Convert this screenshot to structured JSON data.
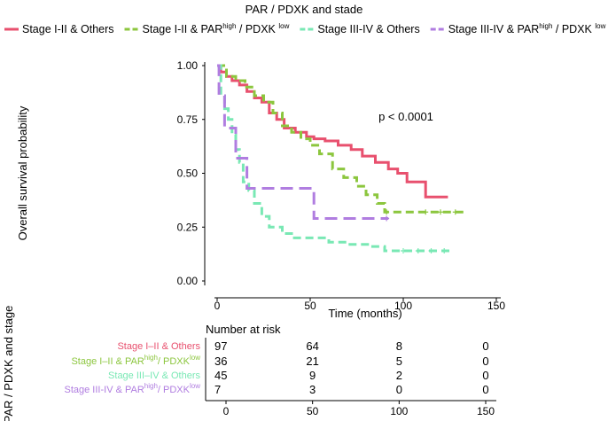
{
  "chart_data": {
    "type": "line",
    "subtype": "kaplan-meier",
    "title": "PAR / PDXK and stade",
    "xlabel": "Time (months)",
    "ylabel": "Overall survival probability",
    "xlim": [
      0,
      150
    ],
    "ylim": [
      0,
      1
    ],
    "x_ticks": [
      "0",
      "50",
      "100",
      "150"
    ],
    "y_ticks": [
      "0.00",
      "0.25",
      "0.50",
      "0.75",
      "1.00"
    ],
    "annotation": "p < 0.0001",
    "legend_position": "top",
    "series": [
      {
        "name": "Stage I-II & Others",
        "legend_parts": [
          "Stage I-II & Others"
        ],
        "color": "#e8506e",
        "dash": "solid",
        "x": [
          0,
          2,
          5,
          8,
          12,
          16,
          20,
          24,
          28,
          32,
          36,
          42,
          48,
          52,
          58,
          65,
          72,
          78,
          85,
          92,
          97,
          102,
          112,
          124
        ],
        "y": [
          1.0,
          0.97,
          0.95,
          0.93,
          0.91,
          0.88,
          0.85,
          0.83,
          0.78,
          0.75,
          0.71,
          0.69,
          0.67,
          0.66,
          0.65,
          0.63,
          0.61,
          0.58,
          0.55,
          0.52,
          0.5,
          0.46,
          0.39,
          0.39
        ],
        "censor_x": [],
        "risk_label_parts": [
          "Stage I–II & Others"
        ],
        "at_risk": [
          97,
          64,
          8,
          0
        ]
      },
      {
        "name": "Stage I-II & PAR high / PDXK low",
        "legend_parts": [
          "Stage I-II & PAR",
          "high",
          " / PDXK ",
          "low"
        ],
        "color": "#8cc63e",
        "dash": "dashed",
        "x": [
          0,
          5,
          10,
          15,
          20,
          25,
          30,
          35,
          40,
          45,
          50,
          55,
          62,
          68,
          75,
          80,
          86,
          90,
          134
        ],
        "y": [
          1.0,
          0.95,
          0.93,
          0.9,
          0.86,
          0.83,
          0.78,
          0.72,
          0.69,
          0.66,
          0.63,
          0.59,
          0.52,
          0.48,
          0.44,
          0.4,
          0.36,
          0.32,
          0.32
        ],
        "censor_x": [
          91,
          112,
          120,
          128
        ],
        "risk_label_parts": [
          "Stage I–II & PAR",
          "high",
          "/ PDXK",
          "low"
        ],
        "at_risk": [
          36,
          21,
          5,
          0
        ]
      },
      {
        "name": "Stage III-IV & Others",
        "legend_parts": [
          "Stage III-IV & Others"
        ],
        "color": "#79e8b4",
        "dash": "dashed",
        "x": [
          0,
          2,
          4,
          6,
          8,
          10,
          12,
          14,
          17,
          20,
          24,
          28,
          35,
          40,
          50,
          60,
          70,
          82,
          90,
          125
        ],
        "y": [
          1.0,
          0.86,
          0.8,
          0.75,
          0.68,
          0.61,
          0.55,
          0.46,
          0.42,
          0.36,
          0.3,
          0.25,
          0.22,
          0.2,
          0.2,
          0.18,
          0.17,
          0.16,
          0.14,
          0.14
        ],
        "censor_x": [
          100,
          108,
          115,
          122
        ],
        "risk_label_parts": [
          "Stage III–IV & Others"
        ],
        "at_risk": [
          45,
          9,
          2,
          0
        ]
      },
      {
        "name": "Stage III-IV & PAR high / PDXK low",
        "legend_parts": [
          "Stage III-IV & PAR",
          "high",
          " / PDXK ",
          "low"
        ],
        "color": "#b07de0",
        "dash": "dashed",
        "x": [
          0,
          1,
          4,
          10,
          16,
          52,
          92
        ],
        "y": [
          1.0,
          0.86,
          0.71,
          0.57,
          0.43,
          0.29,
          0.29
        ],
        "censor_x": [
          91
        ],
        "risk_label_parts": [
          "Stage III-IV & PAR",
          "high",
          "/ PDXK",
          "low"
        ],
        "at_risk": [
          7,
          3,
          0,
          0
        ]
      }
    ],
    "risk_table": {
      "title": "Number at risk",
      "side_label": "PAR / PDXK and stage",
      "x_ticks": [
        "0",
        "50",
        "100",
        "150"
      ],
      "x_values": [
        0,
        50,
        100,
        150
      ]
    }
  }
}
